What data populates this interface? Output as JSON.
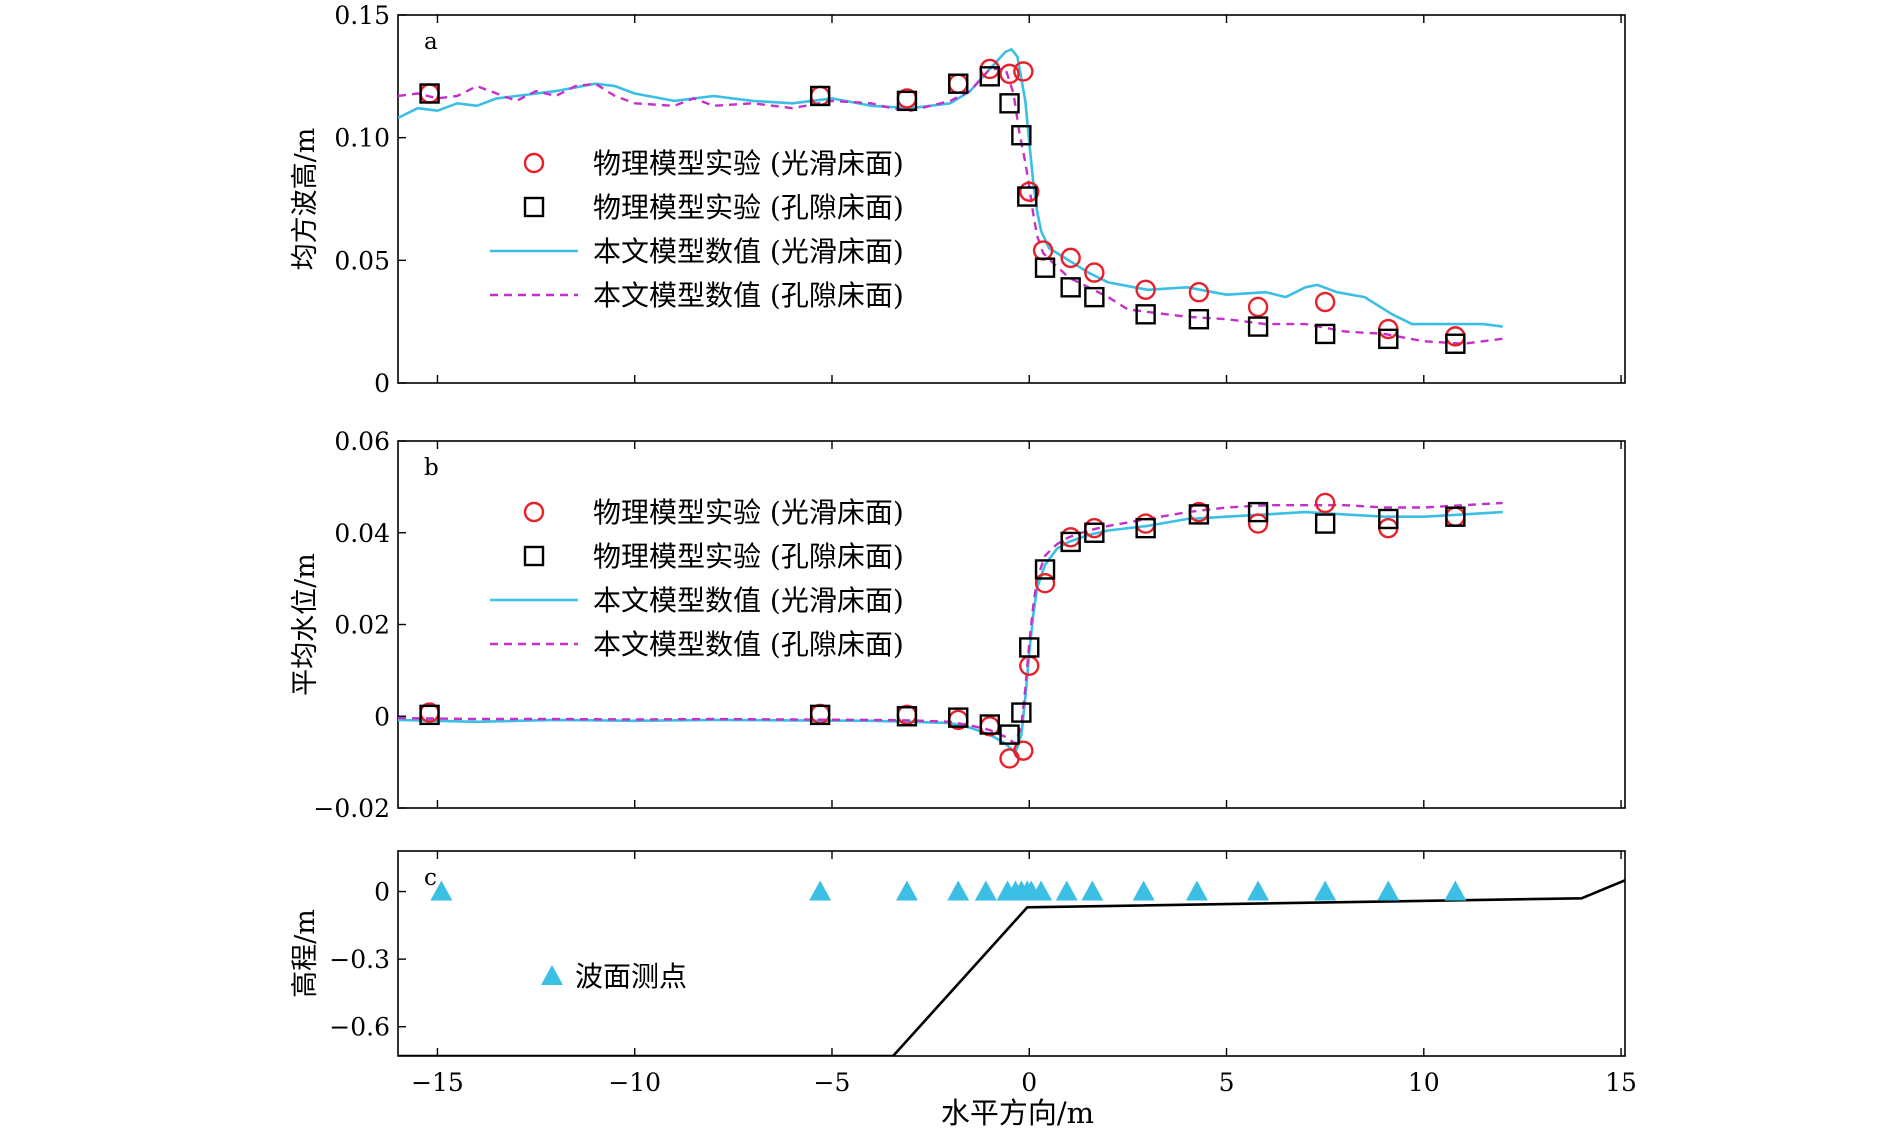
{
  "chart_data": [
    {
      "type": "line",
      "panel_label": "a",
      "ylabel": "均方波高/m",
      "xlim": [
        -16,
        15.1
      ],
      "ylim": [
        0,
        0.15
      ],
      "yticks": [
        0,
        0.05,
        0.1,
        0.15
      ],
      "ytick_labels": [
        "0",
        "0.05",
        "0.10",
        "0.15"
      ],
      "legend": {
        "placement": "center-left",
        "entries": [
          "物理模型实验 (光滑床面)",
          "物理模型实验 (孔隙床面)",
          "本文模型数值 (光滑床面)",
          "本文模型数值 (孔隙床面)"
        ]
      },
      "series": [
        {
          "name": "物理模型实验 (光滑床面)",
          "style": "circle",
          "color": "#e8202a",
          "x": [
            -15.2,
            -5.3,
            -3.1,
            -1.8,
            -1.0,
            -0.5,
            -0.15,
            0.0,
            0.35,
            1.05,
            1.65,
            2.95,
            4.3,
            5.8,
            7.5,
            9.1,
            10.8
          ],
          "y": [
            0.118,
            0.117,
            0.116,
            0.122,
            0.128,
            0.126,
            0.127,
            0.078,
            0.054,
            0.051,
            0.045,
            0.038,
            0.037,
            0.031,
            0.033,
            0.022,
            0.019
          ]
        },
        {
          "name": "物理模型实验 (孔隙床面)",
          "style": "square",
          "color": "#000000",
          "x": [
            -15.2,
            -5.3,
            -3.1,
            -1.8,
            -1.0,
            -0.5,
            -0.2,
            -0.05,
            0.4,
            1.05,
            1.65,
            2.95,
            4.3,
            5.8,
            7.5,
            9.1,
            10.8
          ],
          "y": [
            0.118,
            0.117,
            0.115,
            0.122,
            0.125,
            0.114,
            0.101,
            0.076,
            0.047,
            0.039,
            0.035,
            0.028,
            0.026,
            0.023,
            0.02,
            0.018,
            0.016
          ]
        },
        {
          "name": "本文模型数值 (光滑床面)",
          "style": "solid",
          "color": "#3bbfe5",
          "x": [
            -16,
            -15.5,
            -15,
            -14.5,
            -14,
            -13.5,
            -13,
            -12,
            -11,
            -10.5,
            -10,
            -9,
            -8,
            -7,
            -6,
            -5,
            -4,
            -3,
            -2,
            -1.5,
            -1.0,
            -0.6,
            -0.45,
            -0.3,
            -0.1,
            0.0,
            0.1,
            0.2,
            0.3,
            0.5,
            0.8,
            1.0,
            1.5,
            2.0,
            3.0,
            4.0,
            5.0,
            6.0,
            6.5,
            7.0,
            7.3,
            7.8,
            8.5,
            9.2,
            9.7,
            10.5,
            11.5,
            12.0
          ],
          "y": [
            0.108,
            0.112,
            0.111,
            0.114,
            0.113,
            0.116,
            0.117,
            0.119,
            0.122,
            0.121,
            0.118,
            0.115,
            0.117,
            0.115,
            0.114,
            0.116,
            0.113,
            0.112,
            0.114,
            0.119,
            0.128,
            0.135,
            0.136,
            0.133,
            0.115,
            0.098,
            0.082,
            0.07,
            0.062,
            0.055,
            0.052,
            0.05,
            0.045,
            0.041,
            0.038,
            0.039,
            0.036,
            0.037,
            0.035,
            0.039,
            0.04,
            0.037,
            0.035,
            0.028,
            0.024,
            0.024,
            0.024,
            0.023
          ]
        },
        {
          "name": "本文模型数值 (孔隙床面)",
          "style": "dashed",
          "color": "#c531c8",
          "x": [
            -16,
            -15.5,
            -15,
            -14.5,
            -14,
            -13.5,
            -13,
            -12.5,
            -12,
            -11.5,
            -11,
            -10.5,
            -10,
            -9,
            -8.5,
            -8,
            -7,
            -6,
            -5,
            -4,
            -3.5,
            -3,
            -2,
            -1.5,
            -1.0,
            -0.6,
            -0.4,
            -0.25,
            -0.1,
            0.0,
            0.1,
            0.2,
            0.35,
            0.6,
            1.0,
            1.5,
            2.0,
            2.5,
            3.0,
            4.0,
            5.0,
            6.0,
            7.0,
            8.0,
            9.0,
            10.0,
            11.0,
            12.0
          ],
          "y": [
            0.117,
            0.118,
            0.116,
            0.117,
            0.121,
            0.118,
            0.115,
            0.119,
            0.117,
            0.121,
            0.122,
            0.117,
            0.114,
            0.113,
            0.116,
            0.113,
            0.114,
            0.112,
            0.115,
            0.114,
            0.112,
            0.111,
            0.115,
            0.119,
            0.128,
            0.128,
            0.118,
            0.102,
            0.09,
            0.08,
            0.069,
            0.06,
            0.053,
            0.049,
            0.043,
            0.039,
            0.035,
            0.03,
            0.029,
            0.027,
            0.026,
            0.024,
            0.024,
            0.021,
            0.02,
            0.017,
            0.016,
            0.018
          ]
        }
      ]
    },
    {
      "type": "line",
      "panel_label": "b",
      "ylabel": "平均水位/m",
      "xlim": [
        -16,
        15.1
      ],
      "ylim": [
        -0.02,
        0.06
      ],
      "yticks": [
        -0.02,
        0,
        0.02,
        0.04,
        0.06
      ],
      "ytick_labels": [
        "−0.02",
        "0",
        "0.02",
        "0.04",
        "0.06"
      ],
      "legend": {
        "placement": "center-left",
        "entries": [
          "物理模型实验 (光滑床面)",
          "物理模型实验 (孔隙床面)",
          "本文模型数值 (光滑床面)",
          "本文模型数值 (孔隙床面)"
        ]
      },
      "series": [
        {
          "name": "物理模型实验 (光滑床面)",
          "style": "circle",
          "color": "#e8202a",
          "x": [
            -15.2,
            -5.3,
            -3.1,
            -1.8,
            -1.0,
            -0.5,
            -0.15,
            0.0,
            0.4,
            1.05,
            1.65,
            2.95,
            4.3,
            5.8,
            7.5,
            9.1,
            10.8
          ],
          "y": [
            0.0008,
            0.0005,
            0.0003,
            -0.0008,
            -0.0022,
            -0.0092,
            -0.0075,
            0.011,
            0.029,
            0.039,
            0.041,
            0.042,
            0.0445,
            0.042,
            0.0465,
            0.041,
            0.0435
          ]
        },
        {
          "name": "物理模型实验 (孔隙床面)",
          "style": "square",
          "color": "#000000",
          "x": [
            -15.2,
            -5.3,
            -3.1,
            -1.8,
            -1.0,
            -0.5,
            -0.2,
            0.0,
            0.4,
            1.05,
            1.65,
            2.95,
            4.3,
            5.8,
            7.5,
            9.1,
            10.8
          ],
          "y": [
            0.0003,
            0.0003,
            0.0,
            -0.0003,
            -0.0018,
            -0.004,
            0.0008,
            0.015,
            0.032,
            0.038,
            0.04,
            0.041,
            0.044,
            0.0445,
            0.042,
            0.043,
            0.0435
          ]
        },
        {
          "name": "本文模型数值 (光滑床面)",
          "style": "solid",
          "color": "#3bbfe5",
          "x": [
            -16,
            -14,
            -12,
            -10,
            -8,
            -6,
            -4,
            -3,
            -2,
            -1.5,
            -1.0,
            -0.6,
            -0.35,
            -0.2,
            -0.1,
            0.0,
            0.1,
            0.2,
            0.4,
            0.7,
            1.0,
            1.5,
            2.0,
            3.0,
            4.0,
            5.0,
            6.0,
            7.0,
            8.0,
            9.0,
            10.0,
            11.0,
            12.0
          ],
          "y": [
            -0.0008,
            -0.0012,
            -0.0008,
            -0.001,
            -0.0008,
            -0.0009,
            -0.001,
            -0.0012,
            -0.0015,
            -0.0025,
            -0.004,
            -0.006,
            -0.008,
            -0.004,
            0.004,
            0.014,
            0.022,
            0.028,
            0.033,
            0.0365,
            0.038,
            0.0395,
            0.0405,
            0.0415,
            0.043,
            0.0435,
            0.044,
            0.0445,
            0.044,
            0.0435,
            0.0435,
            0.044,
            0.0445
          ]
        },
        {
          "name": "本文模型数值 (孔隙床面)",
          "style": "dashed",
          "color": "#c531c8",
          "x": [
            -16,
            -14,
            -12,
            -10,
            -8,
            -6,
            -4,
            -3,
            -2,
            -1.5,
            -1.0,
            -0.6,
            -0.35,
            -0.2,
            -0.1,
            0.0,
            0.1,
            0.2,
            0.4,
            0.7,
            1.0,
            1.5,
            2.0,
            3.0,
            4.0,
            5.0,
            6.0,
            7.0,
            8.0,
            9.0,
            10.0,
            11.0,
            12.0
          ],
          "y": [
            -0.0004,
            -0.0006,
            -0.0006,
            -0.0007,
            -0.0006,
            -0.0007,
            -0.0008,
            -0.0009,
            -0.0012,
            -0.002,
            -0.003,
            -0.0045,
            -0.006,
            -0.002,
            0.006,
            0.016,
            0.024,
            0.03,
            0.035,
            0.0375,
            0.039,
            0.0405,
            0.0415,
            0.043,
            0.0445,
            0.0455,
            0.046,
            0.046,
            0.046,
            0.0455,
            0.0455,
            0.046,
            0.0465
          ]
        }
      ]
    },
    {
      "type": "line",
      "panel_label": "c",
      "ylabel": "高程/m",
      "xlabel": "水平方向/m",
      "xlim": [
        -16,
        15.1
      ],
      "ylim": [
        -0.73,
        0.18
      ],
      "yticks": [
        -0.6,
        -0.3,
        0
      ],
      "ytick_labels": [
        "−0.6",
        "−0.3",
        "0"
      ],
      "xticks": [
        -15,
        -10,
        -5,
        0,
        5,
        10,
        15
      ],
      "xtick_labels": [
        "−15",
        "−10",
        "−5",
        "0",
        "5",
        "10",
        "15"
      ],
      "legend": {
        "placement": "center-left",
        "entries": [
          "波面测点"
        ]
      },
      "series": [
        {
          "name": "bed-profile",
          "style": "solid",
          "color": "#000000",
          "x": [
            -16,
            -3.45,
            -0.05,
            14.0,
            15.1
          ],
          "y": [
            -0.73,
            -0.73,
            -0.07,
            -0.03,
            0.05
          ]
        },
        {
          "name": "波面测点",
          "style": "triangle",
          "color": "#3bbfe5",
          "x": [
            -14.9,
            -5.3,
            -3.1,
            -1.8,
            -1.1,
            -0.55,
            -0.35,
            -0.2,
            -0.05,
            0.05,
            0.3,
            0.95,
            1.6,
            2.9,
            4.25,
            5.8,
            7.5,
            9.1,
            10.8
          ],
          "y": [
            0,
            0,
            0,
            0,
            0,
            0,
            0,
            0,
            0,
            0,
            0,
            0,
            0,
            0,
            0,
            0,
            0,
            0,
            0
          ]
        }
      ]
    }
  ]
}
